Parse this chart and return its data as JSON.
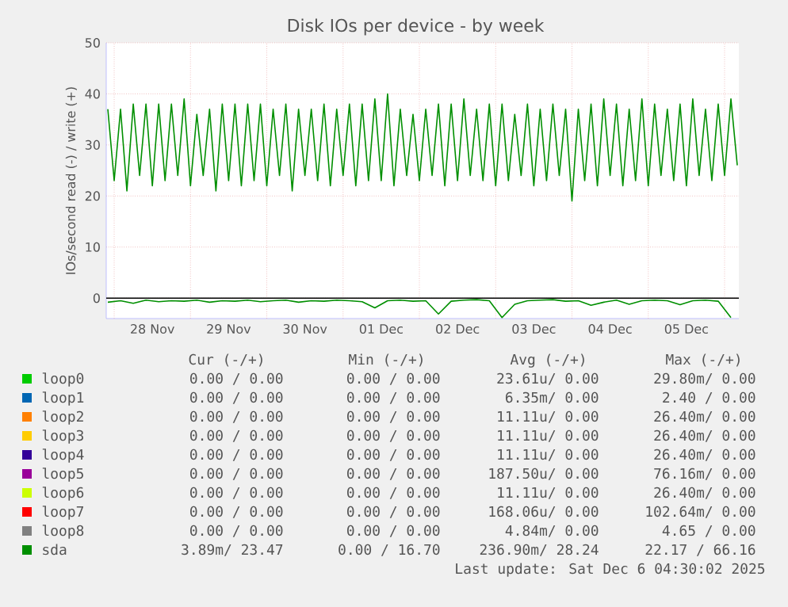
{
  "chart_data": {
    "type": "line",
    "title": "Disk IOs per device - by week",
    "ylabel": "IOs/second read (-) / write (+)",
    "xlim": [
      "2025-11-27T21:30",
      "2025-12-06T04:30"
    ],
    "xticks": [
      {
        "value": "2025-11-28T00:00",
        "label": null
      },
      {
        "value": "2025-11-28T12:00",
        "label": "28 Nov"
      },
      {
        "value": "2025-11-29T00:00",
        "label": null
      },
      {
        "value": "2025-11-29T12:00",
        "label": "29 Nov"
      },
      {
        "value": "2025-11-30T00:00",
        "label": null
      },
      {
        "value": "2025-11-30T12:00",
        "label": "30 Nov"
      },
      {
        "value": "2025-12-01T00:00",
        "label": null
      },
      {
        "value": "2025-12-01T12:00",
        "label": "01 Dec"
      },
      {
        "value": "2025-12-02T00:00",
        "label": null
      },
      {
        "value": "2025-12-02T12:00",
        "label": "02 Dec"
      },
      {
        "value": "2025-12-03T00:00",
        "label": null
      },
      {
        "value": "2025-12-03T12:00",
        "label": "03 Dec"
      },
      {
        "value": "2025-12-04T00:00",
        "label": null
      },
      {
        "value": "2025-12-04T12:00",
        "label": "04 Dec"
      },
      {
        "value": "2025-12-05T00:00",
        "label": null
      },
      {
        "value": "2025-12-05T12:00",
        "label": "05 Dec"
      },
      {
        "value": "2025-12-06T00:00",
        "label": null
      }
    ],
    "ref_lines": [
      {
        "axis": "y",
        "value": 0,
        "color": "#000000"
      }
    ],
    "ylim": [
      -4,
      50
    ],
    "yticks": [
      0,
      10,
      20,
      30,
      40,
      50
    ],
    "grid": true,
    "legend": "bottom",
    "series": [
      {
        "name": "loop0",
        "color": "#00cc00"
      },
      {
        "name": "loop1",
        "color": "#0066b3"
      },
      {
        "name": "loop2",
        "color": "#ff8000"
      },
      {
        "name": "loop3",
        "color": "#ffcc00"
      },
      {
        "name": "loop4",
        "color": "#330099"
      },
      {
        "name": "loop5",
        "color": "#990099"
      },
      {
        "name": "loop6",
        "color": "#ccff00"
      },
      {
        "name": "loop7",
        "color": "#ff0000"
      },
      {
        "name": "loop8",
        "color": "#808080"
      },
      {
        "name": "sda",
        "color": "#008f00",
        "x": [
          "2025-11-27T22:00",
          "2025-11-28T00:00",
          "2025-11-28T02:00",
          "2025-11-28T04:00",
          "2025-11-28T06:00",
          "2025-11-28T08:00",
          "2025-11-28T10:00",
          "2025-11-28T12:00",
          "2025-11-28T14:00",
          "2025-11-28T16:00",
          "2025-11-28T18:00",
          "2025-11-28T20:00",
          "2025-11-28T22:00",
          "2025-11-29T00:00",
          "2025-11-29T02:00",
          "2025-11-29T04:00",
          "2025-11-29T06:00",
          "2025-11-29T08:00",
          "2025-11-29T10:00",
          "2025-11-29T12:00",
          "2025-11-29T14:00",
          "2025-11-29T16:00",
          "2025-11-29T18:00",
          "2025-11-29T20:00",
          "2025-11-29T22:00",
          "2025-11-30T00:00",
          "2025-11-30T02:00",
          "2025-11-30T04:00",
          "2025-11-30T06:00",
          "2025-11-30T08:00",
          "2025-11-30T10:00",
          "2025-11-30T12:00",
          "2025-11-30T14:00",
          "2025-11-30T16:00",
          "2025-11-30T18:00",
          "2025-11-30T20:00",
          "2025-11-30T22:00",
          "2025-12-01T00:00",
          "2025-12-01T02:00",
          "2025-12-01T04:00",
          "2025-12-01T06:00",
          "2025-12-01T08:00",
          "2025-12-01T10:00",
          "2025-12-01T12:00",
          "2025-12-01T14:00",
          "2025-12-01T16:00",
          "2025-12-01T18:00",
          "2025-12-01T20:00",
          "2025-12-01T22:00",
          "2025-12-02T00:00",
          "2025-12-02T02:00",
          "2025-12-02T04:00",
          "2025-12-02T06:00",
          "2025-12-02T08:00",
          "2025-12-02T10:00",
          "2025-12-02T12:00",
          "2025-12-02T14:00",
          "2025-12-02T16:00",
          "2025-12-02T18:00",
          "2025-12-02T20:00",
          "2025-12-02T22:00",
          "2025-12-03T00:00",
          "2025-12-03T02:00",
          "2025-12-03T04:00",
          "2025-12-03T06:00",
          "2025-12-03T08:00",
          "2025-12-03T10:00",
          "2025-12-03T12:00",
          "2025-12-03T14:00",
          "2025-12-03T16:00",
          "2025-12-03T18:00",
          "2025-12-03T20:00",
          "2025-12-03T22:00",
          "2025-12-04T00:00",
          "2025-12-04T02:00",
          "2025-12-04T04:00",
          "2025-12-04T06:00",
          "2025-12-04T08:00",
          "2025-12-04T10:00",
          "2025-12-04T12:00",
          "2025-12-04T14:00",
          "2025-12-04T16:00",
          "2025-12-04T18:00",
          "2025-12-04T20:00",
          "2025-12-04T22:00",
          "2025-12-05T00:00",
          "2025-12-05T02:00",
          "2025-12-05T04:00",
          "2025-12-05T06:00",
          "2025-12-05T08:00",
          "2025-12-05T10:00",
          "2025-12-05T12:00",
          "2025-12-05T14:00",
          "2025-12-05T16:00",
          "2025-12-05T18:00",
          "2025-12-05T20:00",
          "2025-12-05T22:00",
          "2025-12-06T00:00",
          "2025-12-06T02:00",
          "2025-12-06T04:00"
        ],
        "values": [
          37,
          23,
          37,
          21,
          38,
          24,
          38,
          22,
          38,
          23,
          38,
          24,
          39,
          22,
          36,
          24,
          37,
          21,
          38,
          23,
          38,
          22,
          38,
          23,
          38,
          22,
          37,
          24,
          38,
          21,
          37,
          24,
          37,
          23,
          38,
          22,
          37,
          24,
          38,
          22,
          38,
          23,
          39,
          23,
          40,
          22,
          37,
          24,
          36,
          23,
          37,
          24,
          38,
          22,
          38,
          23,
          39,
          24,
          37,
          23,
          38,
          22,
          38,
          23,
          36,
          24,
          38,
          22,
          37,
          23,
          38,
          24,
          37,
          19,
          37,
          23,
          38,
          22,
          39,
          24,
          38,
          22,
          37,
          23,
          39,
          22,
          38,
          24,
          37,
          23,
          38,
          22,
          39,
          24,
          37,
          23,
          38,
          24,
          39,
          26
        ]
      },
      {
        "color": "#008f00",
        "x": [
          "2025-11-27T22:00",
          "2025-11-28T02:00",
          "2025-11-28T06:00",
          "2025-11-28T10:00",
          "2025-11-28T14:00",
          "2025-11-28T18:00",
          "2025-11-28T22:00",
          "2025-11-29T02:00",
          "2025-11-29T06:00",
          "2025-11-29T10:00",
          "2025-11-29T14:00",
          "2025-11-29T18:00",
          "2025-11-29T22:00",
          "2025-11-30T02:00",
          "2025-11-30T06:00",
          "2025-11-30T10:00",
          "2025-11-30T14:00",
          "2025-11-30T18:00",
          "2025-11-30T22:00",
          "2025-12-01T02:00",
          "2025-12-01T06:00",
          "2025-12-01T10:00",
          "2025-12-01T14:00",
          "2025-12-01T18:00",
          "2025-12-01T22:00",
          "2025-12-02T02:00",
          "2025-12-02T06:00",
          "2025-12-02T10:00",
          "2025-12-02T14:00",
          "2025-12-02T18:00",
          "2025-12-02T22:00",
          "2025-12-03T02:00",
          "2025-12-03T06:00",
          "2025-12-03T10:00",
          "2025-12-03T14:00",
          "2025-12-03T18:00",
          "2025-12-03T22:00",
          "2025-12-04T02:00",
          "2025-12-04T06:00",
          "2025-12-04T10:00",
          "2025-12-04T14:00",
          "2025-12-04T18:00",
          "2025-12-04T22:00",
          "2025-12-05T02:00",
          "2025-12-05T06:00",
          "2025-12-05T10:00",
          "2025-12-05T14:00",
          "2025-12-05T18:00",
          "2025-12-05T22:00",
          "2025-12-06T02:00"
        ],
        "values": [
          -0.8,
          -0.5,
          -1.0,
          -0.4,
          -0.7,
          -0.5,
          -0.6,
          -0.4,
          -0.8,
          -0.5,
          -0.6,
          -0.4,
          -0.7,
          -0.5,
          -0.4,
          -0.8,
          -0.5,
          -0.6,
          -0.4,
          -0.5,
          -0.7,
          -1.9,
          -0.5,
          -0.4,
          -0.6,
          -0.5,
          -3.1,
          -0.6,
          -0.4,
          -0.3,
          -0.5,
          -3.8,
          -1.2,
          -0.5,
          -0.4,
          -0.3,
          -0.6,
          -0.5,
          -1.4,
          -0.8,
          -0.4,
          -1.2,
          -0.5,
          -0.4,
          -0.5,
          -1.3,
          -0.5,
          -0.4,
          -0.6,
          -3.8
        ]
      }
    ],
    "annotations": [
      "Cur (-/+)",
      "Min (-/+)",
      "Avg (-/+)",
      "Max (-/+)",
      "0.00 /  0.00",
      "0.00 /  0.00",
      "23.61u/  0.00",
      "29.80m/  0.00",
      "0.00 /  0.00",
      "0.00 /  0.00",
      "6.35m/  0.00",
      "2.40 /  0.00",
      "0.00 /  0.00",
      "0.00 /  0.00",
      "11.11u/  0.00",
      "26.40m/  0.00",
      "0.00 /  0.00",
      "0.00 /  0.00",
      "11.11u/  0.00",
      "26.40m/  0.00",
      "0.00 /  0.00",
      "0.00 /  0.00",
      "11.11u/  0.00",
      "26.40m/  0.00",
      "0.00 /  0.00",
      "0.00 /  0.00",
      "187.50u/  0.00",
      "76.16m/  0.00",
      "0.00 /  0.00",
      "0.00 /  0.00",
      "11.11u/  0.00",
      "26.40m/  0.00",
      "0.00 /  0.00",
      "0.00 /  0.00",
      "168.06u/  0.00",
      "102.64m/  0.00",
      "0.00 /  0.00",
      "0.00 /  0.00",
      "4.84m/  0.00",
      "4.65 /  0.00",
      "3.89m/ 23.47",
      "0.00 / 16.70",
      "236.90m/ 28.24",
      "22.17 / 66.16",
      "Last update: Sat Dec  6 04:30:02 2025"
    ]
  }
}
